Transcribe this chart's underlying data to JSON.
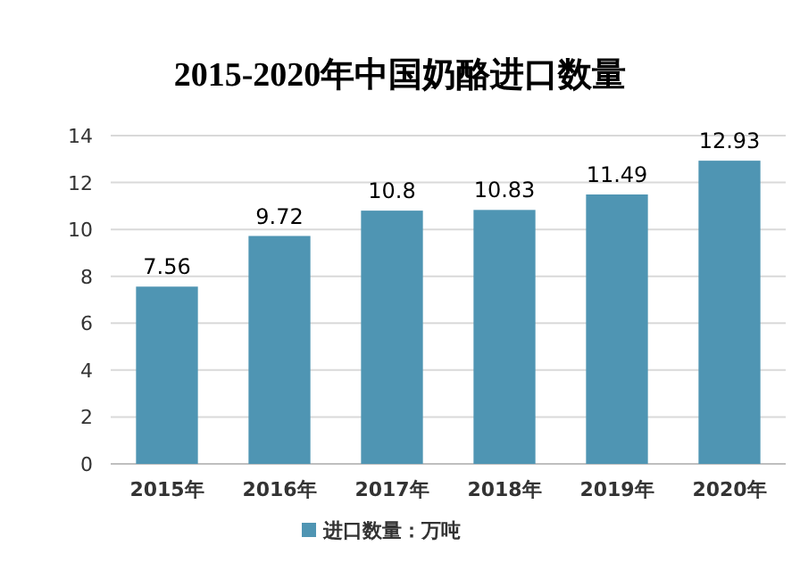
{
  "chart_data": {
    "type": "bar",
    "title": "2015-2020年中国奶酪进口数量",
    "categories": [
      "2015年",
      "2016年",
      "2017年",
      "2018年",
      "2019年",
      "2020年"
    ],
    "series": [
      {
        "name": "进口数量：万吨",
        "color": "#4f95b3",
        "values": [
          7.56,
          9.72,
          10.8,
          10.83,
          11.49,
          12.93
        ]
      }
    ],
    "ylim": [
      0,
      14
    ],
    "yticks": [
      0,
      2,
      4,
      6,
      8,
      10,
      12,
      14
    ],
    "grid": "y",
    "data_labels": true,
    "legend": "bottom"
  }
}
